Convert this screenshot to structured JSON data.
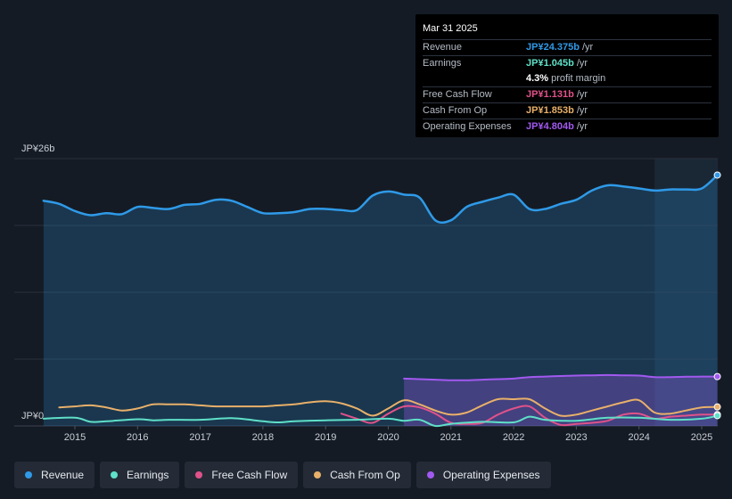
{
  "tooltip": {
    "date": "Mar 31 2025",
    "rows": [
      {
        "label": "Revenue",
        "value": "JP¥24.375b",
        "unit": "/yr",
        "color": "#2f9ae8"
      },
      {
        "label": "Earnings",
        "value": "JP¥1.045b",
        "unit": "/yr",
        "color": "#5fe0c8"
      },
      {
        "label": "",
        "value": "4.3%",
        "unit": "profit margin",
        "color": "#ffffff"
      },
      {
        "label": "Free Cash Flow",
        "value": "JP¥1.131b",
        "unit": "/yr",
        "color": "#e0528a"
      },
      {
        "label": "Cash From Op",
        "value": "JP¥1.853b",
        "unit": "/yr",
        "color": "#e8b06a"
      },
      {
        "label": "Operating Expenses",
        "value": "JP¥4.804b",
        "unit": "/yr",
        "color": "#a259f0"
      }
    ]
  },
  "legend": [
    {
      "label": "Revenue",
      "color": "#2f9ae8"
    },
    {
      "label": "Earnings",
      "color": "#5fe0c8"
    },
    {
      "label": "Free Cash Flow",
      "color": "#e0528a"
    },
    {
      "label": "Cash From Op",
      "color": "#e8b06a"
    },
    {
      "label": "Operating Expenses",
      "color": "#a259f0"
    }
  ],
  "chart_data": {
    "type": "area",
    "currency_unit": "JP¥ billions",
    "y_top_label": "JP¥26b",
    "y_bottom_label": "JP¥0",
    "ylim": [
      0,
      26
    ],
    "xlim": [
      2014.45,
      2025.3
    ],
    "x_ticks": [
      "2015",
      "2016",
      "2017",
      "2018",
      "2019",
      "2020",
      "2021",
      "2022",
      "2023",
      "2024",
      "2025"
    ],
    "forecast_start": 2024.25,
    "series": [
      {
        "name": "Revenue",
        "color": "#2f9ae8",
        "fill": true,
        "x": [
          2014.5,
          2014.75,
          2015.0,
          2015.25,
          2015.5,
          2015.75,
          2016.0,
          2016.25,
          2016.5,
          2016.75,
          2017.0,
          2017.25,
          2017.5,
          2017.75,
          2018.0,
          2018.25,
          2018.5,
          2018.75,
          2019.0,
          2019.25,
          2019.5,
          2019.75,
          2020.0,
          2020.25,
          2020.5,
          2020.75,
          2021.0,
          2021.25,
          2021.5,
          2021.75,
          2022.0,
          2022.25,
          2022.5,
          2022.75,
          2023.0,
          2023.25,
          2023.5,
          2023.75,
          2024.0,
          2024.25,
          2024.5,
          2024.75,
          2025.0,
          2025.25
        ],
        "values": [
          21.9,
          21.6,
          20.9,
          20.5,
          20.7,
          20.6,
          21.3,
          21.2,
          21.1,
          21.5,
          21.6,
          22.0,
          21.9,
          21.3,
          20.7,
          20.7,
          20.8,
          21.1,
          21.1,
          21.0,
          21.0,
          22.4,
          22.8,
          22.5,
          22.2,
          20.0,
          20.0,
          21.3,
          21.8,
          22.2,
          22.5,
          21.1,
          21.1,
          21.6,
          22.0,
          22.9,
          23.4,
          23.3,
          23.1,
          22.9,
          23.0,
          23.0,
          23.1,
          24.4
        ]
      },
      {
        "name": "Earnings",
        "color": "#5fe0c8",
        "fill": false,
        "x": [
          2014.5,
          2015.0,
          2015.25,
          2015.5,
          2016.0,
          2016.25,
          2016.5,
          2017.0,
          2017.5,
          2018.0,
          2018.25,
          2018.5,
          2019.0,
          2019.5,
          2020.0,
          2020.25,
          2020.5,
          2020.75,
          2021.0,
          2021.5,
          2022.0,
          2022.25,
          2022.5,
          2023.0,
          2023.5,
          2024.0,
          2024.5,
          2025.0,
          2025.25
        ],
        "values": [
          0.7,
          0.8,
          0.4,
          0.45,
          0.65,
          0.55,
          0.6,
          0.6,
          0.75,
          0.45,
          0.35,
          0.45,
          0.55,
          0.6,
          0.7,
          0.5,
          0.6,
          0.0,
          0.2,
          0.4,
          0.35,
          0.9,
          0.6,
          0.5,
          0.8,
          0.8,
          0.6,
          0.7,
          1.0
        ]
      },
      {
        "name": "Free Cash Flow",
        "color": "#e0528a",
        "fill": false,
        "x": [
          2019.25,
          2019.5,
          2019.75,
          2020.0,
          2020.25,
          2020.5,
          2020.75,
          2021.0,
          2021.25,
          2021.5,
          2021.75,
          2022.0,
          2022.25,
          2022.5,
          2022.75,
          2023.0,
          2023.25,
          2023.5,
          2023.75,
          2024.0,
          2024.25,
          2024.5,
          2024.75,
          2025.0,
          2025.25
        ],
        "values": [
          1.2,
          0.7,
          0.3,
          1.2,
          1.9,
          1.8,
          1.2,
          0.3,
          0.2,
          0.3,
          1.1,
          1.7,
          1.9,
          0.8,
          0.1,
          0.2,
          0.3,
          0.5,
          1.1,
          1.2,
          0.7,
          0.9,
          1.0,
          1.1,
          1.1
        ]
      },
      {
        "name": "Cash From Op",
        "color": "#e8b06a",
        "fill": false,
        "x": [
          2014.75,
          2015.0,
          2015.25,
          2015.5,
          2015.75,
          2016.0,
          2016.25,
          2016.5,
          2016.75,
          2017.0,
          2017.25,
          2017.5,
          2017.75,
          2018.0,
          2018.25,
          2018.5,
          2018.75,
          2019.0,
          2019.25,
          2019.5,
          2019.75,
          2020.0,
          2020.25,
          2020.5,
          2020.75,
          2021.0,
          2021.25,
          2021.5,
          2021.75,
          2022.0,
          2022.25,
          2022.5,
          2022.75,
          2023.0,
          2023.25,
          2023.5,
          2023.75,
          2024.0,
          2024.25,
          2024.5,
          2024.75,
          2025.0,
          2025.25
        ],
        "values": [
          1.8,
          1.9,
          2.0,
          1.8,
          1.5,
          1.7,
          2.1,
          2.1,
          2.1,
          2.0,
          1.9,
          1.9,
          1.9,
          1.9,
          2.0,
          2.1,
          2.3,
          2.4,
          2.2,
          1.7,
          1.0,
          1.7,
          2.5,
          2.1,
          1.5,
          1.1,
          1.3,
          2.0,
          2.6,
          2.6,
          2.6,
          1.7,
          1.0,
          1.1,
          1.5,
          1.9,
          2.3,
          2.5,
          1.3,
          1.2,
          1.5,
          1.8,
          1.85
        ]
      },
      {
        "name": "Operating Expenses",
        "color": "#a259f0",
        "fill": true,
        "x": [
          2020.25,
          2020.5,
          2020.75,
          2021.0,
          2021.25,
          2021.5,
          2021.75,
          2022.0,
          2022.25,
          2022.5,
          2022.75,
          2023.0,
          2023.25,
          2023.5,
          2023.75,
          2024.0,
          2024.25,
          2024.5,
          2024.75,
          2025.0,
          2025.25
        ],
        "values": [
          4.6,
          4.55,
          4.5,
          4.45,
          4.45,
          4.5,
          4.55,
          4.6,
          4.75,
          4.8,
          4.85,
          4.9,
          4.92,
          4.95,
          4.92,
          4.9,
          4.75,
          4.75,
          4.78,
          4.8,
          4.8
        ]
      }
    ]
  }
}
